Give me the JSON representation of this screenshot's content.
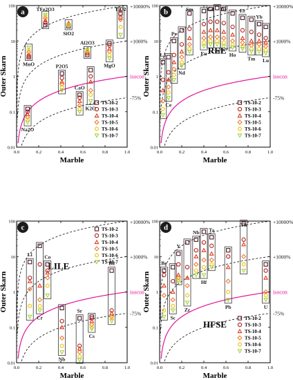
{
  "colors": {
    "isocon": "#e0159a",
    "guide": "#222222",
    "box": "#333333",
    "axis": "#000000"
  },
  "shared": {
    "xlabel": "Marble",
    "ylabel": "Outer Skarn",
    "xlim": [
      0,
      1
    ],
    "ylim": [
      0.01,
      100
    ],
    "x_ticks": [
      "0.0",
      "0.2",
      "0.4",
      "0.6",
      "0.8",
      "1.0"
    ],
    "y_ticks": [
      "0.01",
      "0.1",
      "1",
      "10",
      "100"
    ],
    "isocon_label": "isocon",
    "guide_labels": [
      "+10000%",
      "+1000%",
      "-75%"
    ],
    "series": [
      {
        "name": "TS-10-2",
        "symbol": "square",
        "color": "#4a1a24"
      },
      {
        "name": "TS-10-3",
        "symbol": "circle",
        "color": "#b01c1c"
      },
      {
        "name": "TS-10-4",
        "symbol": "triangle",
        "color": "#e23a1c"
      },
      {
        "name": "TS-10-5",
        "symbol": "diamond",
        "color": "#f07830"
      },
      {
        "name": "TS-10-6",
        "symbol": "hexagon",
        "color": "#f2c418"
      },
      {
        "name": "TS-10-7",
        "symbol": "triangle-down",
        "color": "#a8d43a"
      }
    ]
  },
  "chart_data": [
    {
      "panel": "a",
      "type": "scatter",
      "title": "",
      "group_label": "",
      "xlabel": "Marble",
      "ylabel": "Outer Skarn",
      "grid": false,
      "legend": "bottom-right",
      "points": [
        {
          "label": "TFe2O3",
          "x": 0.26,
          "values": [
            28,
            33,
            38,
            44,
            50,
            55
          ]
        },
        {
          "label": "SiO2",
          "x": 0.47,
          "values": [
            26,
            29,
            32,
            30,
            28,
            27
          ]
        },
        {
          "label": "TiO2",
          "x": 0.94,
          "values": [
            60,
            45,
            70,
            40,
            25,
            15
          ]
        },
        {
          "label": "MnO",
          "x": 0.11,
          "values": [
            3.5,
            3.8,
            4.0,
            4.8,
            5.5,
            6.5
          ]
        },
        {
          "label": "Al2O3",
          "x": 0.64,
          "values": [
            4.0,
            4.5,
            4.8,
            5.0,
            5.3,
            5.5
          ]
        },
        {
          "label": "MgO",
          "x": 0.84,
          "values": [
            8.5,
            7.5,
            6.0,
            5.0,
            4.0,
            3.2
          ]
        },
        {
          "label": "P2O5",
          "x": 0.41,
          "values": [
            1.2,
            0.9,
            0.7,
            0.6,
            0.5,
            0.4
          ]
        },
        {
          "label": "K2O",
          "x": 0.67,
          "values": [
            1.5,
            1.0,
            0.7,
            0.4,
            0.3,
            0.2
          ]
        },
        {
          "label": "CaO",
          "x": 0.57,
          "values": [
            0.3,
            0.25,
            0.2,
            0.15,
            0.12,
            0.1
          ]
        },
        {
          "label": "Na2O",
          "x": 0.1,
          "values": [
            0.12,
            0.1,
            0.085,
            0.07,
            0.06,
            0.05
          ]
        }
      ]
    },
    {
      "panel": "b",
      "type": "scatter",
      "title": "",
      "group_label": "REE",
      "xlabel": "Marble",
      "ylabel": "Outer Skarn",
      "grid": false,
      "legend": "bottom-right",
      "points": [
        {
          "label": "La",
          "x": 0.03,
          "values": [
            2.5,
            0.8,
            0.4,
            0.2,
            0.12,
            0.08
          ]
        },
        {
          "label": "Ce",
          "x": 0.08,
          "values": [
            3.5,
            1.3,
            0.8,
            0.5,
            0.35,
            0.25
          ]
        },
        {
          "label": "Pr",
          "x": 0.13,
          "values": [
            10,
            4.0,
            2.5,
            1.6,
            1.1,
            0.8
          ]
        },
        {
          "label": "Nd",
          "x": 0.2,
          "values": [
            20,
            8,
            5,
            3.5,
            2.5,
            2.0
          ]
        },
        {
          "label": "Sm",
          "x": 0.27,
          "values": [
            60,
            22,
            12,
            8,
            6,
            5
          ]
        },
        {
          "label": "Eu",
          "x": 0.4,
          "values": [
            70,
            30,
            18,
            12,
            9,
            7
          ]
        },
        {
          "label": "Gd",
          "x": 0.46,
          "values": [
            80,
            35,
            20,
            13,
            10,
            8
          ]
        },
        {
          "label": "Tb",
          "x": 0.52,
          "values": [
            85,
            35,
            20,
            13,
            10,
            8
          ]
        },
        {
          "label": "Dy",
          "x": 0.58,
          "values": [
            80,
            32,
            18,
            12,
            9,
            7
          ]
        },
        {
          "label": "Ho",
          "x": 0.66,
          "values": [
            60,
            25,
            15,
            10,
            8,
            6.5
          ]
        },
        {
          "label": "Er",
          "x": 0.75,
          "values": [
            45,
            20,
            12,
            9,
            7,
            6
          ]
        },
        {
          "label": "Tm",
          "x": 0.83,
          "values": [
            40,
            18,
            10,
            7.5,
            6,
            5
          ]
        },
        {
          "label": "Yb",
          "x": 0.9,
          "values": [
            30,
            15,
            10,
            8,
            6,
            5
          ]
        },
        {
          "label": "Lu",
          "x": 0.96,
          "values": [
            25,
            12,
            9,
            7,
            5.5,
            4.5
          ]
        }
      ]
    },
    {
      "panel": "c",
      "type": "scatter",
      "title": "",
      "group_label": "LILE",
      "xlabel": "Marble",
      "ylabel": "Outer Skarn",
      "grid": false,
      "legend": "top-right",
      "points": [
        {
          "label": "Li",
          "x": 0.12,
          "values": [
            7,
            2.5,
            2.0,
            1.2,
            0.4,
            0.2
          ]
        },
        {
          "label": "Cr",
          "x": 0.21,
          "values": [
            20,
            6,
            1.5,
            0.6,
            0.4,
            0.3
          ]
        },
        {
          "label": "Co",
          "x": 0.28,
          "values": [
            6,
            4,
            3.5,
            2.5,
            1.5,
            0.8
          ]
        },
        {
          "label": "Nb",
          "x": 0.41,
          "values": [
            0.35,
            0.15,
            0.1,
            0.05,
            0.03,
            0.02
          ]
        },
        {
          "label": "Sr",
          "x": 0.57,
          "values": [
            0.18,
            0.03,
            0.025,
            0.02,
            0.015,
            0.012
          ]
        },
        {
          "label": "Cs",
          "x": 0.68,
          "values": [
            0.2,
            0.18,
            0.15,
            0.12,
            0.1,
            0.09
          ]
        },
        {
          "label": "Ba",
          "x": 0.86,
          "values": [
            4,
            0.3,
            0.25,
            0.2,
            0.18,
            0.15
          ]
        }
      ]
    },
    {
      "panel": "d",
      "type": "scatter",
      "title": "",
      "group_label": "HFSE",
      "xlabel": "Marble",
      "ylabel": "Outer Skarn",
      "grid": false,
      "legend": "bottom-right",
      "points": [
        {
          "label": "Be",
          "x": 0.04,
          "values": [
            4,
            3,
            1.5,
            0.8,
            0.3,
            0.2
          ]
        },
        {
          "label": "Sc",
          "x": 0.12,
          "values": [
            5,
            2,
            1.0,
            0.6,
            0.4,
            0.3
          ]
        },
        {
          "label": "Y",
          "x": 0.17,
          "values": [
            12,
            6,
            3,
            2.5,
            2.2,
            2.0
          ]
        },
        {
          "label": "Zr",
          "x": 0.25,
          "values": [
            25,
            5,
            2.5,
            1.5,
            0.8,
            0.5
          ]
        },
        {
          "label": "Nb",
          "x": 0.33,
          "values": [
            30,
            15,
            10,
            6,
            4,
            3
          ]
        },
        {
          "label": "Hf",
          "x": 0.4,
          "values": [
            50,
            25,
            15,
            8,
            5,
            3
          ]
        },
        {
          "label": "Ta",
          "x": 0.47,
          "values": [
            35,
            20,
            12,
            8,
            6,
            5
          ]
        },
        {
          "label": "Pb",
          "x": 0.62,
          "values": [
            15,
            10,
            5,
            2.0,
            1.0,
            0.6
          ]
        },
        {
          "label": "Th",
          "x": 0.76,
          "values": [
            85,
            30,
            22,
            10,
            6,
            4
          ]
        },
        {
          "label": "U",
          "x": 0.96,
          "values": [
            6,
            4,
            2.5,
            1.0,
            0.8,
            0.6
          ]
        }
      ]
    }
  ]
}
